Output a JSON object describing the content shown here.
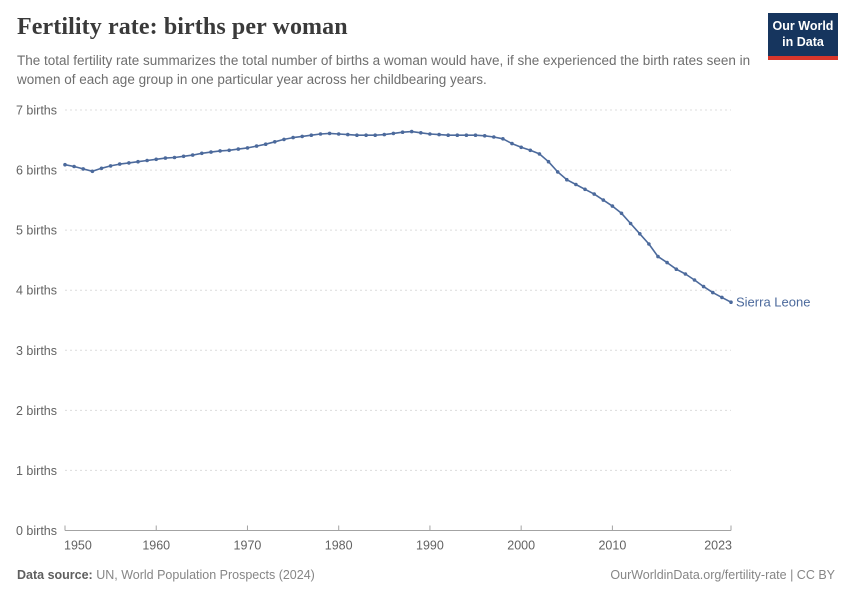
{
  "header": {
    "title": "Fertility rate: births per woman",
    "subtitle": "The total fertility rate summarizes the total number of births a woman would have, if she experienced the birth rates seen in women of each age group in one particular year across her childbearing years.",
    "logo": {
      "line1": "Our World",
      "line2": "in Data"
    }
  },
  "chart_data": {
    "type": "line",
    "title": "Fertility rate: births per woman",
    "entity_label": "Sierra Leone",
    "xlabel": "",
    "ylabel": "births per woman",
    "xlim": [
      1950,
      2023
    ],
    "ylim": [
      0,
      7
    ],
    "grid": true,
    "legend_position": "end-of-line",
    "line_color": "#4c6a9c",
    "grid_color": "#dcdcdc",
    "axis_color": "#a3a3a3",
    "tick_text_color": "#636363",
    "x_ticks": [
      {
        "v": 1950,
        "label": "1950"
      },
      {
        "v": 1960,
        "label": "1960"
      },
      {
        "v": 1970,
        "label": "1970"
      },
      {
        "v": 1980,
        "label": "1980"
      },
      {
        "v": 1990,
        "label": "1990"
      },
      {
        "v": 2000,
        "label": "2000"
      },
      {
        "v": 2010,
        "label": "2010"
      },
      {
        "v": 2023,
        "label": "2023"
      }
    ],
    "y_ticks": [
      {
        "v": 0,
        "label": "0 births"
      },
      {
        "v": 1,
        "label": "1 births"
      },
      {
        "v": 2,
        "label": "2 births"
      },
      {
        "v": 3,
        "label": "3 births"
      },
      {
        "v": 4,
        "label": "4 births"
      },
      {
        "v": 5,
        "label": "5 births"
      },
      {
        "v": 6,
        "label": "6 births"
      },
      {
        "v": 7,
        "label": "7 births"
      }
    ],
    "x": [
      1950,
      1951,
      1952,
      1953,
      1954,
      1955,
      1956,
      1957,
      1958,
      1959,
      1960,
      1961,
      1962,
      1963,
      1964,
      1965,
      1966,
      1967,
      1968,
      1969,
      1970,
      1971,
      1972,
      1973,
      1974,
      1975,
      1976,
      1977,
      1978,
      1979,
      1980,
      1981,
      1982,
      1983,
      1984,
      1985,
      1986,
      1987,
      1988,
      1989,
      1990,
      1991,
      1992,
      1993,
      1994,
      1995,
      1996,
      1997,
      1998,
      1999,
      2000,
      2001,
      2002,
      2003,
      2004,
      2005,
      2006,
      2007,
      2008,
      2009,
      2010,
      2011,
      2012,
      2013,
      2014,
      2015,
      2016,
      2017,
      2018,
      2019,
      2020,
      2021,
      2022,
      2023
    ],
    "values": [
      6.09,
      6.06,
      6.02,
      5.98,
      6.03,
      6.07,
      6.1,
      6.12,
      6.14,
      6.16,
      6.18,
      6.2,
      6.21,
      6.23,
      6.25,
      6.28,
      6.3,
      6.32,
      6.33,
      6.35,
      6.37,
      6.4,
      6.43,
      6.47,
      6.51,
      6.54,
      6.56,
      6.58,
      6.6,
      6.61,
      6.6,
      6.59,
      6.58,
      6.58,
      6.58,
      6.59,
      6.61,
      6.63,
      6.64,
      6.62,
      6.6,
      6.59,
      6.58,
      6.58,
      6.58,
      6.58,
      6.57,
      6.55,
      6.52,
      6.44,
      6.38,
      6.33,
      6.27,
      6.14,
      5.97,
      5.84,
      5.76,
      5.68,
      5.6,
      5.5,
      5.4,
      5.28,
      5.11,
      4.94,
      4.77,
      4.56,
      4.46,
      4.35,
      4.27,
      4.17,
      4.06,
      3.96,
      3.88,
      3.8
    ]
  },
  "footer": {
    "datasource_label": "Data source:",
    "datasource_text": " UN, World Population Prospects (2024)",
    "credit": "OurWorldinData.org/fertility-rate | CC BY"
  }
}
